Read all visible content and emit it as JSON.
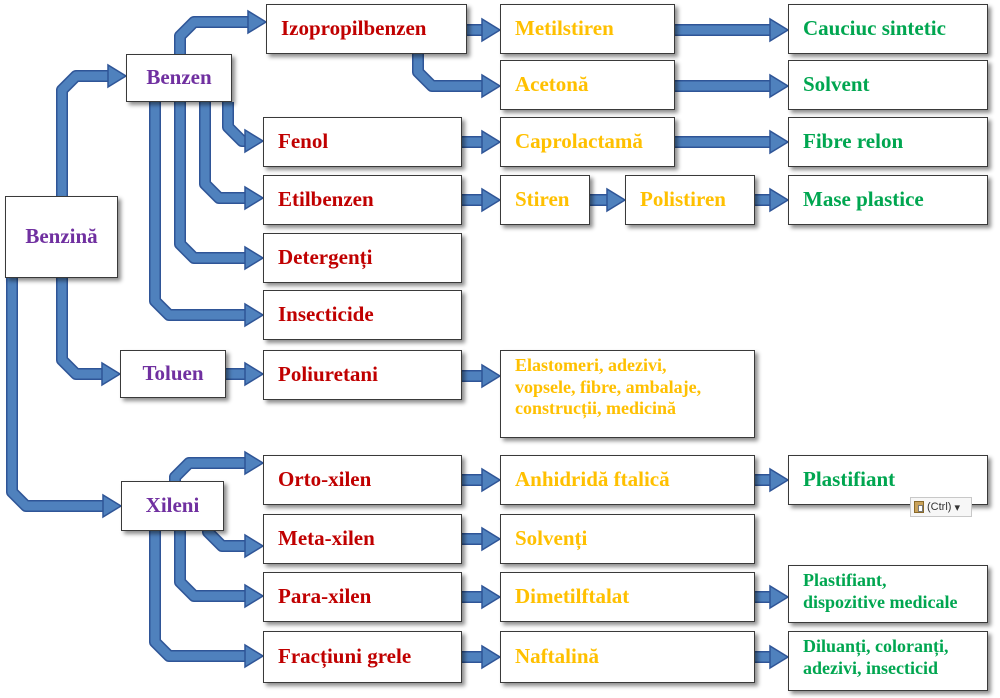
{
  "colors": {
    "arrow": "#4f81bd",
    "arrow_edge": "#2f5597",
    "root": "#7030a0",
    "level2": "#c00000",
    "level3": "#ffc000",
    "level4": "#00a650"
  },
  "nodes": {
    "benzina": "Benzină",
    "benzen": "Benzen",
    "toluen": "Toluen",
    "xileni": "Xileni",
    "izopropilbenzen": "Izopropilbenzen",
    "fenol": "Fenol",
    "etilbenzen": "Etilbenzen",
    "detergenti": "Detergenți",
    "insecticide": "Insecticide",
    "poliuretani": "Poliuretani",
    "orto_xilen": "Orto-xilen",
    "meta_xilen": "Meta-xilen",
    "para_xilen": "Para-xilen",
    "fractiuni_grele": "Fracțiuni grele",
    "metilstiren": "Metilstiren",
    "acetona": "Acetonă",
    "caprolactama": "Caprolactamă",
    "stiren": "Stiren",
    "polistiren": "Polistiren",
    "poliuretani_uses": [
      "Elastomeri, adezivi,",
      "vopsele, fibre, ambalaje,",
      "construcții, medicină"
    ],
    "anhidrida": "Anhidridă ftalică",
    "solventi": "Solvenți",
    "dimetilftalat": "Dimetilftalat",
    "naftalina": "Naftalină",
    "cauciuc": "Cauciuc sintetic",
    "solvent": "Solvent",
    "fibre_relon": "Fibre relon",
    "mase_plastice": "Mase plastice",
    "plastifiant": "Plastifiant",
    "plastifiant_med": [
      "Plastifiant,",
      "dispozitive medicale"
    ],
    "diluanti": [
      "Diluanți, coloranți,",
      "adezivi, insecticid"
    ]
  },
  "paste_options": {
    "label": "(Ctrl)",
    "icon": "clipboard-icon"
  }
}
